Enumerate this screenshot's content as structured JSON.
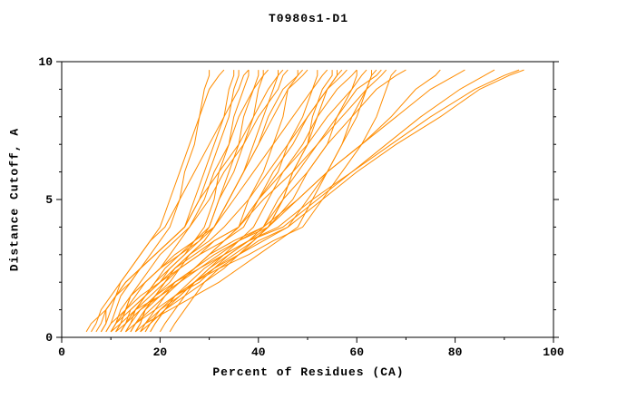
{
  "page": {
    "background": "#ffffff"
  },
  "chart_data": {
    "type": "line",
    "title": "T0980s1-D1",
    "xlabel": "Percent of Residues (CA)",
    "ylabel": "Distance Cutoff, A",
    "xlim": [
      0,
      100
    ],
    "ylim": [
      0,
      10
    ],
    "x_major_ticks": [
      0,
      20,
      40,
      60,
      80,
      100
    ],
    "x_tick_labels": [
      "0",
      "20",
      "40",
      "60",
      "80",
      "100"
    ],
    "x_minor_step": 10,
    "y_major_ticks": [
      0,
      5,
      10
    ],
    "y_tick_labels": [
      "0",
      "5",
      "10"
    ],
    "y_minor_step": 1,
    "grid": false,
    "legend": "none",
    "line_color": "#ff8c00",
    "axis_color": "#000000",
    "y_points": [
      0.2,
      0.5,
      1,
      1.5,
      2,
      2.5,
      3,
      3.5,
      4,
      5,
      6,
      7,
      8,
      9,
      9.5,
      9.7
    ],
    "series_x": [
      [
        5,
        6,
        9,
        11,
        14,
        16,
        18,
        20,
        22,
        24,
        25,
        27,
        28,
        29,
        30,
        30
      ],
      [
        6,
        7,
        8,
        10,
        12,
        14,
        16,
        18,
        20,
        22,
        24,
        26,
        28,
        30,
        32,
        33
      ],
      [
        7,
        8,
        9,
        11,
        13,
        16,
        19,
        22,
        25,
        28,
        30,
        32,
        34,
        35,
        36,
        36
      ],
      [
        8,
        9,
        9,
        11,
        12,
        14,
        16,
        18,
        21,
        24,
        27,
        30,
        33,
        36,
        37,
        38
      ],
      [
        9,
        10,
        13,
        16,
        20,
        22,
        25,
        28,
        30,
        32,
        34,
        36,
        37,
        39,
        40,
        40
      ],
      [
        10,
        11,
        13,
        15,
        17,
        20,
        22,
        24,
        26,
        29,
        31,
        34,
        36,
        39,
        41,
        42
      ],
      [
        10,
        11,
        12,
        14,
        17,
        20,
        24,
        28,
        31,
        34,
        37,
        39,
        41,
        43,
        44,
        44
      ],
      [
        11,
        12,
        13,
        14,
        16,
        18,
        20,
        23,
        26,
        30,
        33,
        37,
        40,
        44,
        45,
        46
      ],
      [
        11,
        13,
        16,
        20,
        24,
        27,
        30,
        33,
        36,
        38,
        41,
        43,
        45,
        46,
        48,
        48
      ],
      [
        12,
        13,
        15,
        18,
        21,
        23,
        26,
        29,
        31,
        34,
        37,
        40,
        43,
        46,
        49,
        50
      ],
      [
        12,
        13,
        14,
        17,
        20,
        24,
        28,
        33,
        37,
        40,
        44,
        46,
        49,
        51,
        52,
        52
      ],
      [
        13,
        14,
        15,
        17,
        19,
        21,
        24,
        27,
        31,
        35,
        39,
        43,
        47,
        51,
        53,
        54
      ],
      [
        13,
        15,
        19,
        23,
        28,
        31,
        35,
        39,
        42,
        45,
        47,
        50,
        52,
        54,
        56,
        56
      ],
      [
        14,
        15,
        18,
        21,
        24,
        27,
        30,
        33,
        36,
        40,
        43,
        47,
        50,
        54,
        57,
        58
      ],
      [
        14,
        15,
        17,
        19,
        23,
        28,
        33,
        38,
        42,
        47,
        50,
        54,
        56,
        59,
        60,
        60
      ],
      [
        15,
        16,
        17,
        19,
        22,
        24,
        28,
        31,
        36,
        40,
        45,
        50,
        54,
        59,
        61,
        62
      ],
      [
        15,
        17,
        22,
        27,
        32,
        36,
        40,
        44,
        48,
        51,
        54,
        57,
        60,
        62,
        63,
        64
      ],
      [
        16,
        17,
        20,
        24,
        27,
        31,
        34,
        38,
        41,
        44,
        48,
        52,
        56,
        60,
        64,
        65
      ],
      [
        8,
        9,
        10,
        11,
        13,
        16,
        19,
        22,
        25,
        27,
        29,
        31,
        33,
        34,
        35,
        35
      ],
      [
        9,
        10,
        11,
        12,
        14,
        16,
        19,
        22,
        25,
        28,
        32,
        36,
        39,
        42,
        44,
        45
      ],
      [
        16,
        18,
        21,
        25,
        29,
        33,
        36,
        39,
        42,
        45,
        47,
        50,
        51,
        53,
        55,
        55
      ],
      [
        17,
        18,
        21,
        24,
        27,
        30,
        33,
        36,
        39,
        42,
        45,
        49,
        52,
        56,
        59,
        60
      ],
      [
        18,
        19,
        21,
        23,
        27,
        31,
        36,
        41,
        46,
        50,
        54,
        57,
        59,
        62,
        63,
        63
      ],
      [
        12,
        13,
        15,
        17,
        20,
        23,
        27,
        31,
        36,
        41,
        47,
        52,
        57,
        62,
        65,
        66
      ],
      [
        10,
        12,
        15,
        20,
        24,
        28,
        32,
        36,
        41,
        45,
        50,
        54,
        59,
        64,
        68,
        70
      ],
      [
        14,
        15,
        17,
        20,
        23,
        27,
        31,
        36,
        42,
        48,
        54,
        61,
        67,
        72,
        76,
        77
      ],
      [
        16,
        17,
        19,
        21,
        23,
        27,
        30,
        35,
        41,
        48,
        54,
        61,
        68,
        75,
        80,
        82
      ],
      [
        18,
        19,
        21,
        23,
        26,
        29,
        33,
        38,
        45,
        52,
        59,
        66,
        73,
        81,
        86,
        88
      ],
      [
        20,
        21,
        23,
        25,
        27,
        30,
        34,
        38,
        44,
        51,
        59,
        67,
        75,
        84,
        90,
        93
      ],
      [
        22,
        23,
        25,
        27,
        29,
        32,
        36,
        40,
        46,
        53,
        60,
        68,
        77,
        85,
        91,
        94
      ],
      [
        10,
        11,
        14,
        17,
        19,
        22,
        25,
        27,
        29,
        31,
        32,
        34,
        35,
        37,
        38,
        38
      ],
      [
        11,
        12,
        13,
        14,
        17,
        20,
        23,
        27,
        30,
        32,
        35,
        37,
        39,
        40,
        41,
        41
      ],
      [
        13,
        14,
        16,
        19,
        21,
        24,
        26,
        29,
        31,
        34,
        37,
        40,
        42,
        45,
        48,
        49
      ],
      [
        15,
        16,
        17,
        19,
        21,
        23,
        26,
        30,
        33,
        38,
        42,
        46,
        50,
        54,
        56,
        57
      ],
      [
        17,
        18,
        20,
        23,
        27,
        32,
        38,
        43,
        49,
        53,
        57,
        61,
        64,
        66,
        67,
        68
      ]
    ]
  }
}
